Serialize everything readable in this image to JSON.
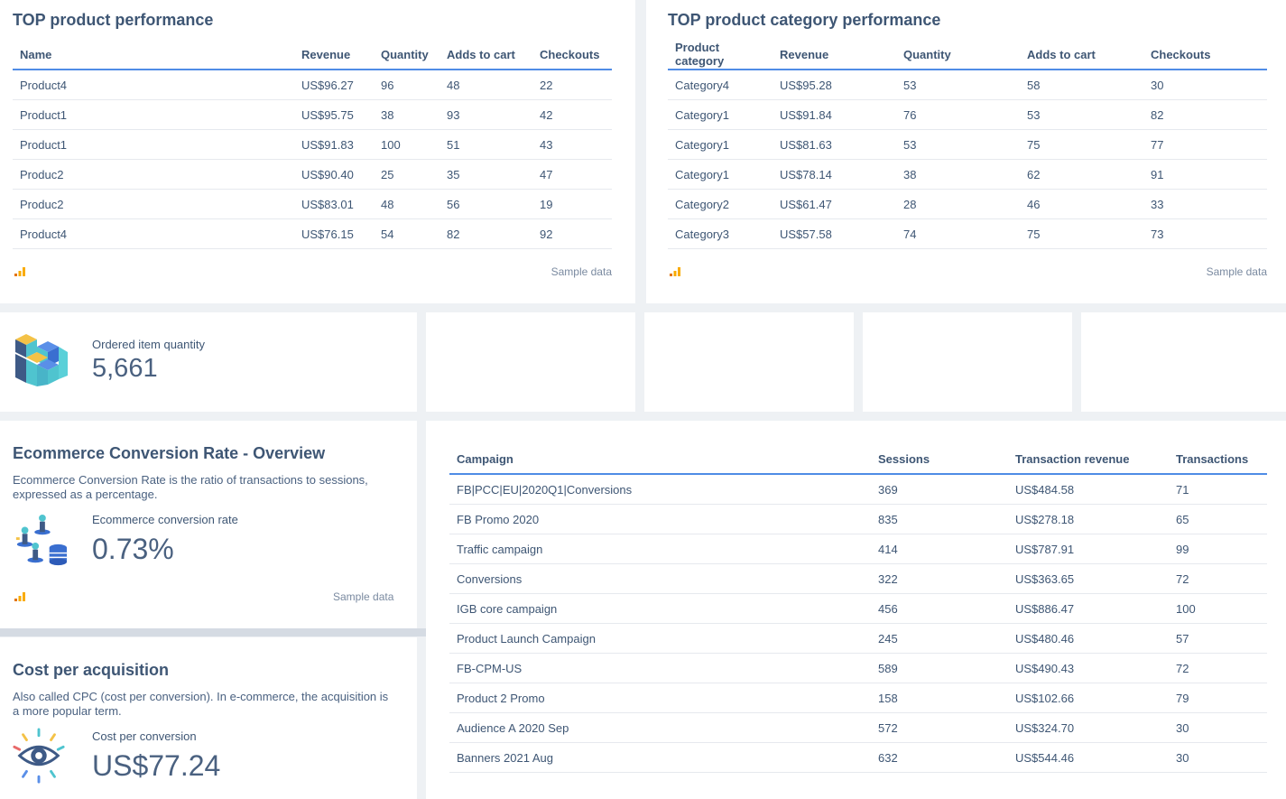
{
  "top_products": {
    "title": "TOP product performance",
    "columns": [
      "Name",
      "Revenue",
      "Quantity",
      "Adds to cart",
      "Checkouts"
    ],
    "rows": [
      [
        "Product4",
        "US$96.27",
        "96",
        "48",
        "22"
      ],
      [
        "Product1",
        "US$95.75",
        "38",
        "93",
        "42"
      ],
      [
        "Product1",
        "US$91.83",
        "100",
        "51",
        "43"
      ],
      [
        "Produc2",
        "US$90.40",
        "25",
        "35",
        "47"
      ],
      [
        "Produc2",
        "US$83.01",
        "48",
        "56",
        "19"
      ],
      [
        "Product4",
        "US$76.15",
        "54",
        "82",
        "92"
      ]
    ],
    "footer_note": "Sample data"
  },
  "top_categories": {
    "title": "TOP product category performance",
    "columns": [
      "Product category",
      "Revenue",
      "Quantity",
      "Adds to cart",
      "Checkouts"
    ],
    "rows": [
      [
        "Category4",
        "US$95.28",
        "53",
        "58",
        "30"
      ],
      [
        "Category1",
        "US$91.84",
        "76",
        "53",
        "82"
      ],
      [
        "Category1",
        "US$81.63",
        "53",
        "75",
        "77"
      ],
      [
        "Category1",
        "US$78.14",
        "38",
        "62",
        "91"
      ],
      [
        "Category2",
        "US$61.47",
        "28",
        "46",
        "33"
      ],
      [
        "Category3",
        "US$57.58",
        "74",
        "75",
        "73"
      ]
    ],
    "footer_note": "Sample data"
  },
  "ordered_quantity": {
    "label": "Ordered item quantity",
    "value": "5,661",
    "icon": "blocks-icon"
  },
  "conversion_rate": {
    "title": "Ecommerce Conversion Rate - Overview",
    "description": "Ecommerce Conversion Rate is the ratio of transactions to sessions, expressed as a percentage.",
    "label": "Ecommerce conversion rate",
    "value": "0.73%",
    "footer_note": "Sample data",
    "icon": "people-database-icon"
  },
  "cost_per_acquisition": {
    "title": "Cost per acquisition",
    "description": "Also called CPC (cost per conversion). In e-commerce, the acquisition is a more popular term.",
    "label": "Cost per conversion",
    "value": "US$77.24",
    "icon": "eye-icon"
  },
  "campaigns": {
    "columns": [
      "Campaign",
      "Sessions",
      "Transaction revenue",
      "Transactions"
    ],
    "rows": [
      [
        "FB|PCC|EU|2020Q1|Conversions",
        "369",
        "US$484.58",
        "71"
      ],
      [
        "FB Promo 2020",
        "835",
        "US$278.18",
        "65"
      ],
      [
        "Traffic campaign",
        "414",
        "US$787.91",
        "99"
      ],
      [
        "Conversions",
        "322",
        "US$363.65",
        "72"
      ],
      [
        "IGB core campaign",
        "456",
        "US$886.47",
        "100"
      ],
      [
        "Product Launch Campaign",
        "245",
        "US$480.46",
        "57"
      ],
      [
        "FB-CPM-US",
        "589",
        "US$490.43",
        "72"
      ],
      [
        "Product 2 Promo",
        "158",
        "US$102.66",
        "79"
      ],
      [
        "Audience A 2020 Sep",
        "572",
        "US$324.70",
        "30"
      ],
      [
        "Banners 2021 Aug",
        "632",
        "US$544.46",
        "30"
      ]
    ]
  },
  "colors": {
    "accent": "#4f8ce6",
    "ga_bars": [
      "#f9ab00",
      "#e37400"
    ]
  }
}
